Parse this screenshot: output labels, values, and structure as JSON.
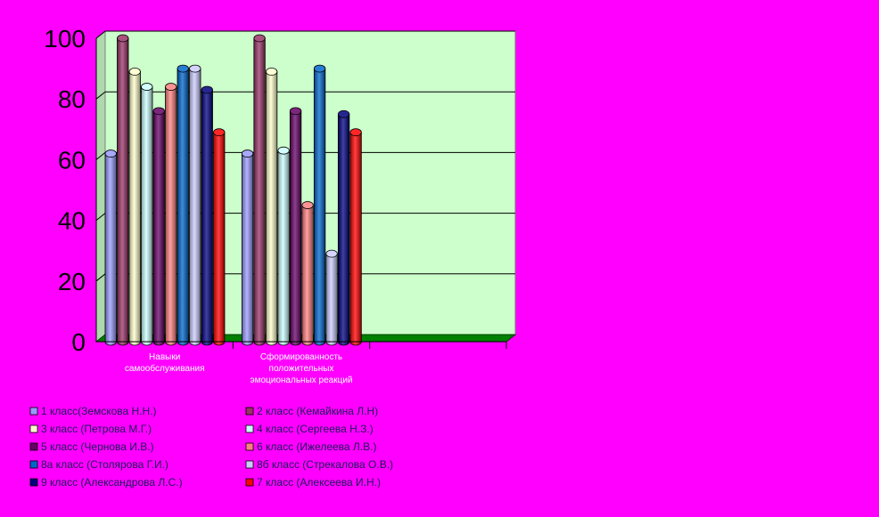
{
  "chart_data": {
    "type": "bar",
    "categories": [
      "Навыки самообслуживания",
      "Сформированность положительных эмоциональных реакций",
      ""
    ],
    "category_lines": [
      [
        "Навыки",
        "самообслуживания"
      ],
      [
        "Сформированность",
        "положительных",
        "эмоциональных реакций"
      ],
      []
    ],
    "yticks": [
      "0",
      "20",
      "40",
      "60",
      "80",
      "100"
    ],
    "ylim": [
      0,
      100
    ],
    "grid": true,
    "legend_position": "bottom",
    "series": [
      {
        "name": "1 класс(Земскова Н.Н.)",
        "color": "#9999FF",
        "values": [
          62,
          62,
          null
        ]
      },
      {
        "name": "2 класс (Кемайкина Л.Н)",
        "color": "#993366",
        "values": [
          100,
          100,
          null
        ]
      },
      {
        "name": "3 класс (Петрова М.Г.)",
        "color": "#FFFFCC",
        "values": [
          89,
          89,
          null
        ]
      },
      {
        "name": "4 класс (Сергеева Н.З.)",
        "color": "#CCFFFF",
        "values": [
          84,
          63,
          null
        ]
      },
      {
        "name": "5 класс (Чернова И.В.)",
        "color": "#660066",
        "values": [
          76,
          76,
          null
        ]
      },
      {
        "name": "6 класс (Ижелеева Л.В.)",
        "color": "#FF8080",
        "values": [
          84,
          45,
          null
        ]
      },
      {
        "name": "8а класс (Столярова Г.И.)",
        "color": "#0066CC",
        "values": [
          90,
          90,
          null
        ]
      },
      {
        "name": "8б класс (Стрекалова О.В.)",
        "color": "#CCCCFF",
        "values": [
          90,
          29,
          null
        ]
      },
      {
        "name": "9 класс (Александрова Л.С.)",
        "color": "#000080",
        "values": [
          83,
          75,
          null
        ]
      },
      {
        "name": "7 класс (Алексеева И.Н.)",
        "color": "#FF0000",
        "values": [
          69,
          69,
          null
        ]
      }
    ],
    "colors": {
      "background": "#FF00FF",
      "plot_area": "#CCFFCC",
      "floor": "#008000",
      "gridline": "#000000"
    }
  }
}
